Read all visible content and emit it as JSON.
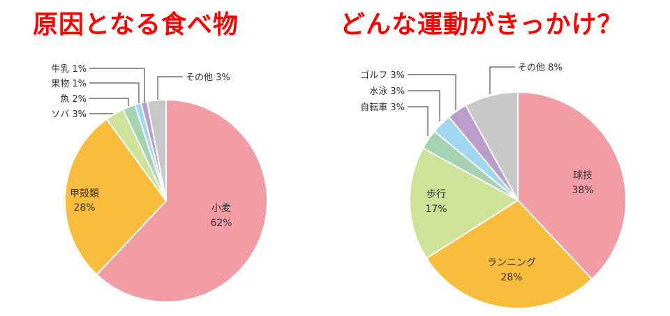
{
  "titles": {
    "left": "原因となる食べ物",
    "right": "どんな運動がきっかけ？"
  },
  "colors": {
    "title": "#ff0000",
    "pink": "#f29ca6",
    "orange": "#f8bd3d",
    "lightgreen": "#cfe29a",
    "green": "#a3d3b3",
    "lightblue": "#9fd6f2",
    "purple": "#b99dcc",
    "gray": "#c8c8c8"
  },
  "chart_data": [
    {
      "type": "pie",
      "title": "原因となる食べ物",
      "categories": [
        "小麦",
        "甲殻類",
        "ソバ",
        "魚",
        "果物",
        "牛乳",
        "その他"
      ],
      "values": [
        62,
        28,
        3,
        2,
        1,
        1,
        3
      ],
      "labels": {
        "wheat": {
          "name": "小麦",
          "pct": "62%"
        },
        "shellfish": {
          "name": "甲殻類",
          "pct": "28%"
        },
        "soba": "ソバ 3%",
        "fish": "魚 2%",
        "fruit": "果物 1%",
        "milk": "牛乳 1%",
        "other": "その他 3%"
      }
    },
    {
      "type": "pie",
      "title": "どんな運動がきっかけ？",
      "categories": [
        "球技",
        "ランニング",
        "歩行",
        "自転車",
        "水泳",
        "ゴルフ",
        "その他"
      ],
      "values": [
        38,
        28,
        17,
        3,
        3,
        3,
        8
      ],
      "labels": {
        "ball": {
          "name": "球技",
          "pct": "38%"
        },
        "running": {
          "name": "ランニング",
          "pct": "28%"
        },
        "walking": {
          "name": "歩行",
          "pct": "17%"
        },
        "bicycle": "自転車 3%",
        "swimming": "水泳 3%",
        "golf": "ゴルフ 3%",
        "other": "その他 8%"
      }
    }
  ]
}
